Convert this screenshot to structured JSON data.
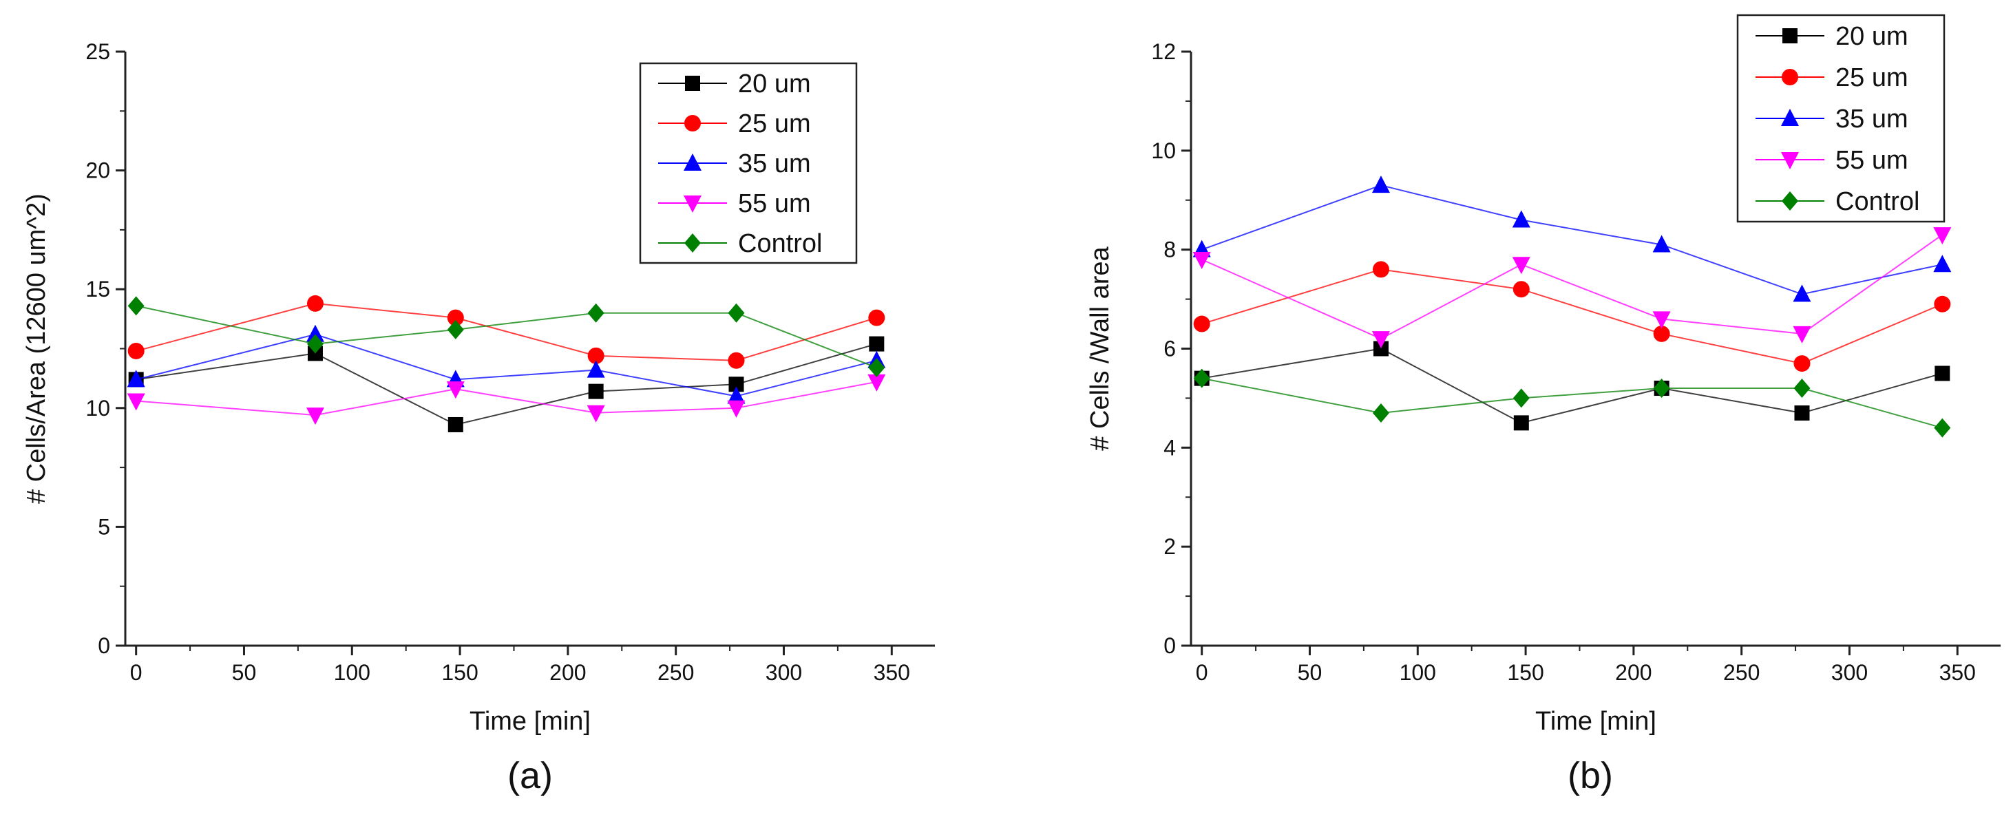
{
  "chart_data": [
    {
      "type": "line",
      "panel_label": "(a)",
      "title": "",
      "xlabel": "Time [min]",
      "ylabel": "# Cells/Area (12600 um^2)",
      "xlim": [
        -5,
        370
      ],
      "ylim": [
        0,
        25
      ],
      "xticks": [
        0,
        50,
        100,
        150,
        200,
        250,
        300,
        350
      ],
      "yticks": [
        0,
        5,
        10,
        15,
        20,
        25
      ],
      "grid": false,
      "legend_position": "top-right",
      "series": [
        {
          "name": "20 um",
          "color": "#000000",
          "marker": "square",
          "x": [
            0,
            83,
            148,
            213,
            278,
            343
          ],
          "y": [
            11.2,
            12.3,
            9.3,
            10.7,
            11.0,
            12.7
          ]
        },
        {
          "name": "25 um",
          "color": "#ff0000",
          "marker": "circle",
          "x": [
            0,
            83,
            148,
            213,
            278,
            343
          ],
          "y": [
            12.4,
            14.4,
            13.8,
            12.2,
            12.0,
            13.8
          ]
        },
        {
          "name": "35 um",
          "color": "#0000ff",
          "marker": "triangle-up",
          "x": [
            0,
            83,
            148,
            213,
            278,
            343
          ],
          "y": [
            11.2,
            13.1,
            11.2,
            11.6,
            10.5,
            12.0
          ]
        },
        {
          "name": "55 um",
          "color": "#ff00ff",
          "marker": "triangle-down",
          "x": [
            0,
            83,
            148,
            213,
            278,
            343
          ],
          "y": [
            10.3,
            9.7,
            10.8,
            9.8,
            10.0,
            11.1
          ]
        },
        {
          "name": "Control",
          "color": "#008000",
          "marker": "diamond",
          "x": [
            0,
            83,
            148,
            213,
            278,
            343
          ],
          "y": [
            14.3,
            12.7,
            13.3,
            14.0,
            14.0,
            11.7
          ]
        }
      ]
    },
    {
      "type": "line",
      "panel_label": "(b)",
      "title": "",
      "xlabel": "Time [min]",
      "ylabel": "# Cells /Wall area",
      "xlim": [
        -5,
        370
      ],
      "ylim": [
        0,
        12
      ],
      "xticks": [
        0,
        50,
        100,
        150,
        200,
        250,
        300,
        350
      ],
      "yticks": [
        0,
        2,
        4,
        6,
        8,
        10,
        12
      ],
      "grid": false,
      "legend_position": "top-right",
      "series": [
        {
          "name": "20 um",
          "color": "#000000",
          "marker": "square",
          "x": [
            0,
            83,
            148,
            213,
            278,
            343
          ],
          "y": [
            5.4,
            6.0,
            4.5,
            5.2,
            4.7,
            5.5
          ]
        },
        {
          "name": "25 um",
          "color": "#ff0000",
          "marker": "circle",
          "x": [
            0,
            83,
            148,
            213,
            278,
            343
          ],
          "y": [
            6.5,
            7.6,
            7.2,
            6.3,
            5.7,
            6.9
          ]
        },
        {
          "name": "35 um",
          "color": "#0000ff",
          "marker": "triangle-up",
          "x": [
            0,
            83,
            148,
            213,
            278,
            343
          ],
          "y": [
            8.0,
            9.3,
            8.6,
            8.1,
            7.1,
            7.7
          ]
        },
        {
          "name": "55 um",
          "color": "#ff00ff",
          "marker": "triangle-down",
          "x": [
            0,
            83,
            148,
            213,
            278,
            343
          ],
          "y": [
            7.8,
            6.2,
            7.7,
            6.6,
            6.3,
            8.3
          ]
        },
        {
          "name": "Control",
          "color": "#008000",
          "marker": "diamond",
          "x": [
            0,
            83,
            148,
            213,
            278,
            343
          ],
          "y": [
            5.4,
            4.7,
            5.0,
            5.2,
            5.2,
            4.4
          ]
        }
      ]
    }
  ]
}
